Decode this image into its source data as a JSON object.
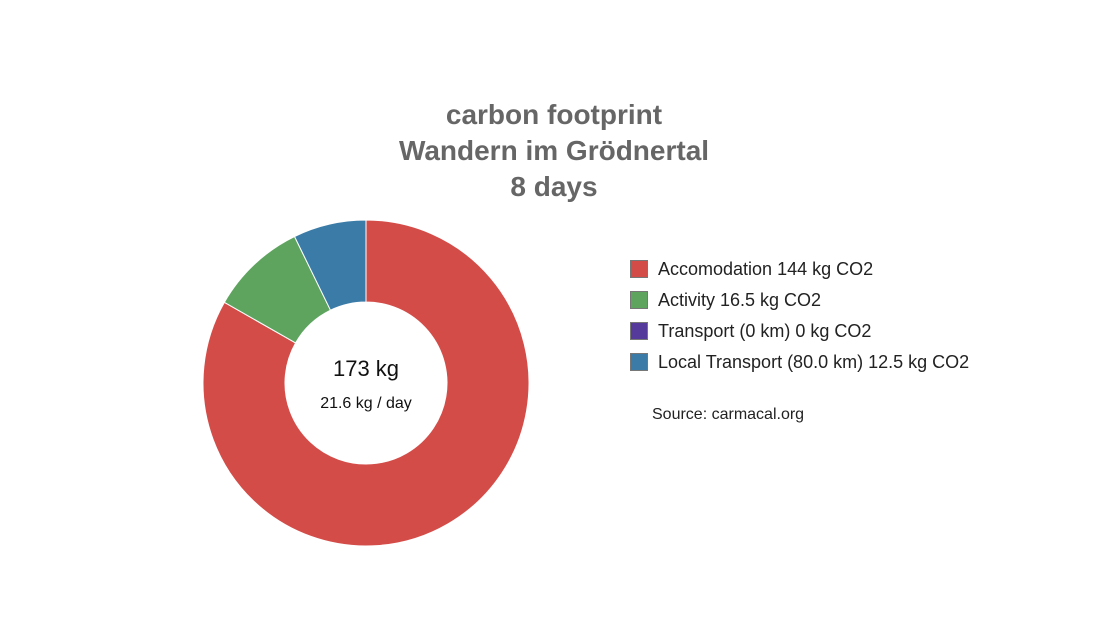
{
  "chart_data": {
    "type": "pie",
    "donut": true,
    "title": [
      "carbon footprint",
      "Wandern im Grödnertal",
      "8 days"
    ],
    "categories": [
      "Accomodation",
      "Activity",
      "Transport",
      "Local Transport"
    ],
    "values": [
      144,
      16.5,
      0,
      12.5
    ],
    "unit": "kg CO2",
    "colors": [
      "#d44c48",
      "#5ea45f",
      "#55399b",
      "#3b7ba8"
    ],
    "legend_labels": [
      "Accomodation 144 kg CO2",
      "Activity 16.5 kg CO2",
      "Transport (0 km) 0 kg CO2",
      "Local Transport (80.0 km) 12.5 kg CO2"
    ],
    "legend_position": "right",
    "center_total": "173 kg",
    "center_per_day": "21.6 kg / day",
    "source": "Source: carmacal.org"
  }
}
